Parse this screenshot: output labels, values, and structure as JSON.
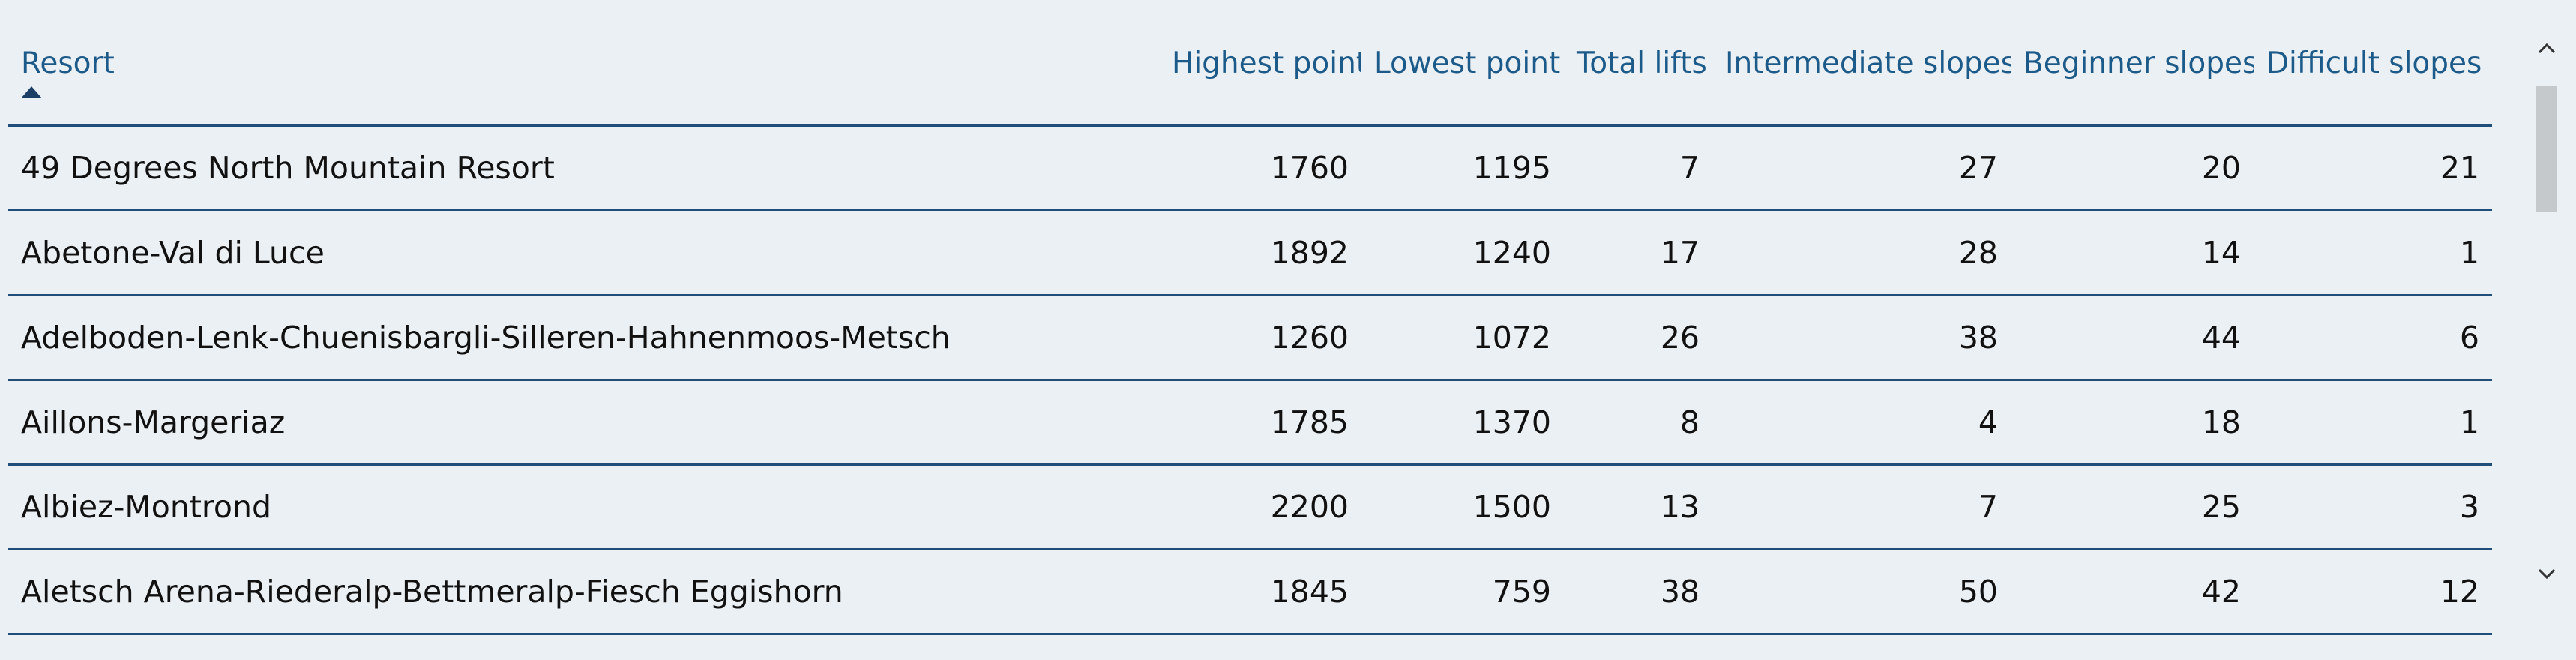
{
  "table": {
    "columns": [
      "Resort",
      "Highest point",
      "Lowest point",
      "Total lifts",
      "Intermediate slopes",
      "Beginner slopes",
      "Difficult slopes"
    ],
    "sort": {
      "column": "Resort",
      "direction": "ascending"
    },
    "rows": [
      [
        "49 Degrees North Mountain Resort",
        "1760",
        "1195",
        "7",
        "27",
        "20",
        "21"
      ],
      [
        "Abetone-Val di Luce",
        "1892",
        "1240",
        "17",
        "28",
        "14",
        "1"
      ],
      [
        "Adelboden-Lenk-Chuenisbargli-Silleren-Hahnenmoos-Metsch",
        "1260",
        "1072",
        "26",
        "38",
        "44",
        "6"
      ],
      [
        "Aillons-Margeriaz",
        "1785",
        "1370",
        "8",
        "4",
        "18",
        "1"
      ],
      [
        "Albiez-Montrond",
        "2200",
        "1500",
        "13",
        "7",
        "25",
        "3"
      ],
      [
        "Aletsch Arena-Riederalp-Bettmeralp-Fiesch Eggishorn",
        "1845",
        "759",
        "38",
        "50",
        "42",
        "12"
      ]
    ]
  },
  "scrollbar": {
    "up_icon": "chevron-up-icon",
    "down_icon": "chevron-down-icon"
  },
  "colors": {
    "background": "#ebf0f4",
    "header_text": "#1c5a8a",
    "row_border": "#1f4e79",
    "cell_text": "#111111"
  }
}
